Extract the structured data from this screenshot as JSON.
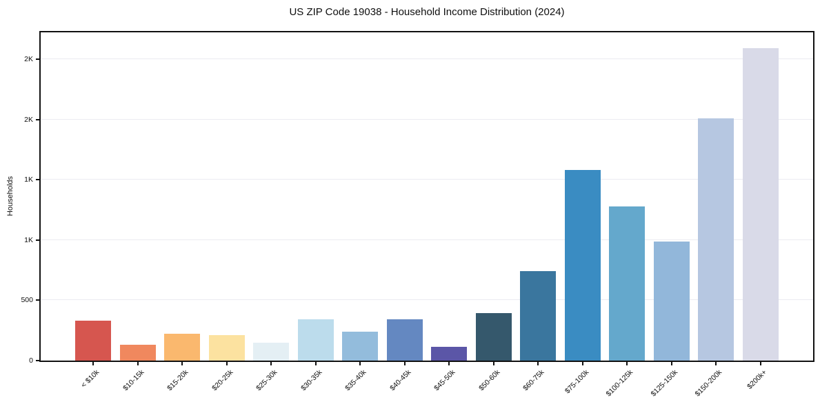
{
  "figure": {
    "title": "US ZIP Code 19038 - Household Income Distribution (2024)",
    "ylabel": "Households"
  },
  "chart_data": {
    "type": "bar",
    "title": "US ZIP Code 19038 - Household Income Distribution (2024)",
    "xlabel": "",
    "ylabel": "Households",
    "categories": [
      "< $10k",
      "$10-15k",
      "$15-20k",
      "$20-25k",
      "$25-30k",
      "$30-35k",
      "$35-40k",
      "$40-45k",
      "$45-50k",
      "$50-60k",
      "$60-75k",
      "$75-100k",
      "$100-125k",
      "$125-150k",
      "$150-200k",
      "$200k+"
    ],
    "values": [
      330,
      130,
      225,
      210,
      150,
      340,
      240,
      345,
      115,
      395,
      740,
      1580,
      1280,
      990,
      2010,
      2590
    ],
    "bar_colors": [
      "#d6564f",
      "#f0885e",
      "#fab86e",
      "#fce2a0",
      "#e4eff4",
      "#bcdcec",
      "#93bcdc",
      "#6488c1",
      "#5b56a7",
      "#35586c",
      "#3a769e",
      "#3a8cc2",
      "#64a8cc",
      "#92b7da",
      "#b6c7e1",
      "#d9dae8"
    ],
    "ylim": [
      0,
      2722
    ],
    "yticks": [
      {
        "value": 0,
        "label": "0"
      },
      {
        "value": 500,
        "label": "500"
      },
      {
        "value": 1000,
        "label": "1K"
      },
      {
        "value": 1500,
        "label": "1K"
      },
      {
        "value": 2000,
        "label": "2K"
      },
      {
        "value": 2500,
        "label": "2K"
      }
    ],
    "grid": "horizontal",
    "grid_color": "#ebebf1",
    "spine_color": "#101010",
    "background": "#ffffff",
    "legend": "none",
    "x_tick_rotation_deg": 45
  }
}
